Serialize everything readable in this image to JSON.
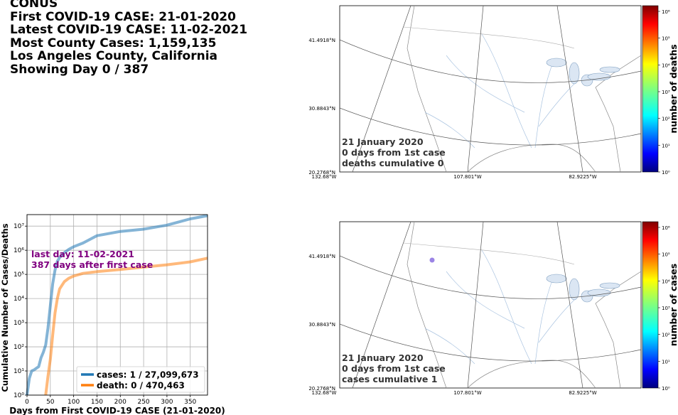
{
  "header": {
    "region": "CONUS",
    "first_case": "First COVID-19 CASE: 21-01-2020",
    "latest_case": "Latest COVID-19 CASE: 11-02-2021",
    "most_cases": "Most County Cases: 1,159,135",
    "county": "Los Angeles County, California",
    "showing_day": "Showing Day 0 / 387"
  },
  "maps": [
    {
      "date": "21 January 2020",
      "days": "0 days from 1st case",
      "metric": "deaths cumulative 0",
      "lat_labels": [
        "41.4918°N",
        "30.8843°N",
        "20.2768°N"
      ],
      "lon_labels": [
        "132.68°W",
        "107.801°W",
        "82.9225°W"
      ],
      "colorbar_label": "number of deaths",
      "colorbar_ticks": [
        "10⁰",
        "10¹",
        "10²",
        "10³",
        "10⁴",
        "10⁵",
        "10⁶"
      ],
      "highlight": false
    },
    {
      "date": "21 January 2020",
      "days": "0 days from 1st case",
      "metric": "cases cumulative 1",
      "lat_labels": [
        "41.4918°N",
        "30.8843°N",
        "20.2768°N"
      ],
      "lon_labels": [
        "132.68°W",
        "107.801°W",
        "82.9225°W"
      ],
      "colorbar_label": "number of cases",
      "colorbar_ticks": [
        "10⁰",
        "10¹",
        "10²",
        "10³",
        "10⁴",
        "10⁵",
        "10⁶"
      ],
      "highlight": true
    }
  ],
  "chart_data": {
    "type": "line",
    "xlabel": "Days from First COVID-19 CASE (21-01-2020)",
    "ylabel": "Cumulative Number of Cases/Deaths",
    "xlim": [
      0,
      387
    ],
    "ylim": [
      1,
      30000000
    ],
    "yscale": "log",
    "grid": true,
    "x_ticks": [
      0,
      50,
      100,
      150,
      200,
      250,
      300,
      350
    ],
    "y_ticks": [
      1,
      10,
      100,
      1000,
      10000,
      100000,
      1000000,
      10000000
    ],
    "y_tick_labels": [
      "10⁰",
      "10¹",
      "10²",
      "10³",
      "10⁴",
      "10⁵",
      "10⁶",
      "10⁷"
    ],
    "annotation": [
      "last day: 11-02-2021",
      "387 days after first case"
    ],
    "legend_position": "bottom-right",
    "series": [
      {
        "name": "cases: 1 / 27,099,673",
        "color": "#1f77b4",
        "x": [
          0,
          5,
          10,
          15,
          20,
          25,
          30,
          35,
          40,
          45,
          50,
          55,
          60,
          65,
          70,
          80,
          90,
          100,
          120,
          150,
          200,
          250,
          300,
          350,
          387
        ],
        "y": [
          1,
          5,
          10,
          11,
          13,
          15,
          35,
          60,
          120,
          600,
          5000,
          40000,
          150000,
          350000,
          500000,
          800000,
          1100000,
          1400000,
          2000000,
          4000000,
          6000000,
          7500000,
          11000000,
          20000000,
          27099673
        ]
      },
      {
        "name": "death: 0 / 470,463",
        "color": "#ff7f0e",
        "x": [
          40,
          45,
          50,
          55,
          60,
          65,
          70,
          80,
          90,
          100,
          120,
          150,
          200,
          250,
          300,
          350,
          387
        ],
        "y": [
          1,
          6,
          30,
          300,
          2500,
          10000,
          25000,
          50000,
          70000,
          85000,
          110000,
          130000,
          160000,
          200000,
          250000,
          330000,
          470463
        ]
      }
    ]
  }
}
